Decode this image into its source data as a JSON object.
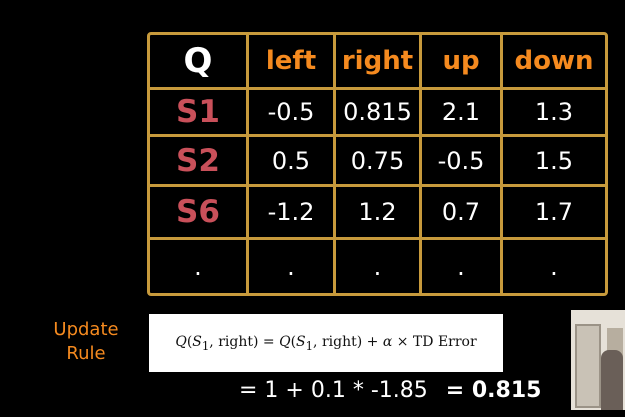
{
  "table": {
    "corner": "Q",
    "headers": [
      "left",
      "right",
      "up",
      "down"
    ],
    "rows": [
      {
        "state": "S1",
        "values": [
          "-0.5",
          "0.815",
          "2.1",
          "1.3"
        ]
      },
      {
        "state": "S2",
        "values": [
          "0.5",
          "0.75",
          "-0.5",
          "1.5"
        ]
      },
      {
        "state": "S6",
        "values": [
          "-1.2",
          "1.2",
          "0.7",
          "1.7"
        ]
      },
      {
        "state": ".",
        "values": [
          ".",
          ".",
          ".",
          "."
        ]
      }
    ]
  },
  "update": {
    "label_line1": "Update",
    "label_line2": "Rule",
    "calc_expr": "= 1 + 0.1 * -1.85",
    "calc_result": "= 0.815"
  },
  "colors": {
    "border": "#c79a3c",
    "header": "#f58a1f",
    "state": "#c9505a"
  }
}
